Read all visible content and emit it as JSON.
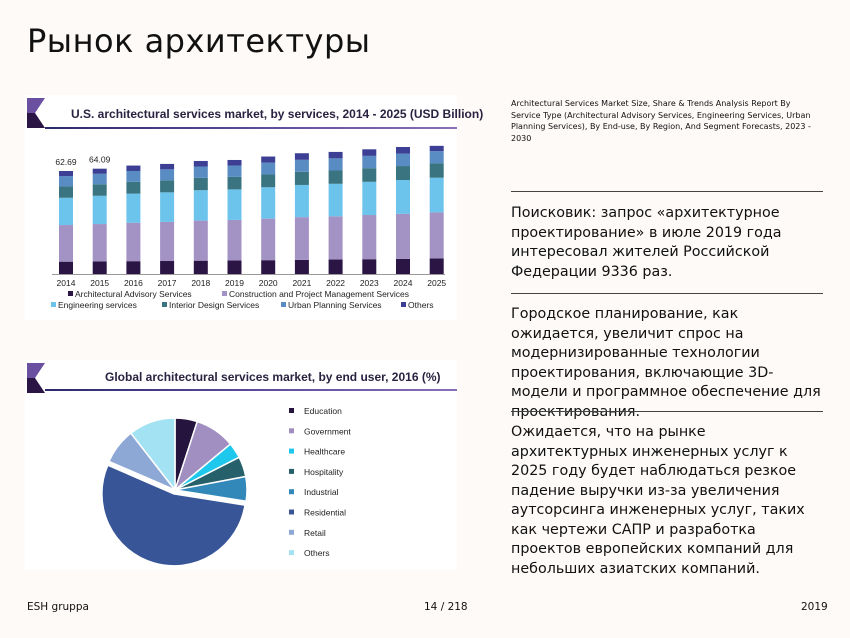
{
  "slide": {
    "title": "Рынок архитектуры",
    "report_title": "Architectural Services Market Size, Share & Trends Analysis Report By Service Type (Architectural Advisory Services, Engineering Services, Urban Planning Services), By End-use, By Region, And Segment Forecasts, 2023 - 2030",
    "paragraphs": [
      "Поисковик: запрос «архитектурное проектирование» в июле 2019 года интересовал жителей Российской Федерации 9336 раз.",
      "Городское планирование, как ожидается, увеличит спрос на модернизированные технологии проектирования, включающие 3D-модели и программное обеспечение для проектирования.",
      "Ожидается, что на рынке архитектурных инженерных услуг к 2025 году будет наблюдаться резкое падение выручки из-за увеличения аутсорсинга инженерных услуг, таких как чертежи САПР и разработка проектов европейских компаний для небольших азиатских компаний."
    ]
  },
  "footer": {
    "left": "ESH gruppa",
    "page": "14 / 218",
    "year": "2019"
  },
  "chart_data": [
    {
      "type": "bar",
      "stacked": true,
      "title": "U.S. architectural services market, by services, 2014 - 2025 (USD Billion)",
      "categories": [
        "2014",
        "2015",
        "2016",
        "2017",
        "2018",
        "2019",
        "2020",
        "2021",
        "2022",
        "2023",
        "2024",
        "2025"
      ],
      "data_labels": {
        "2014": "62.69",
        "2015": "64.09"
      },
      "legend_placement": "bottom",
      "grid": false,
      "series": [
        {
          "name": "Architectural Advisory Services",
          "color": "#2b1545",
          "values": [
            7.5,
            7.6,
            7.8,
            7.9,
            8.1,
            8.2,
            8.4,
            8.6,
            8.8,
            9.0,
            9.2,
            9.5
          ]
        },
        {
          "name": "Construction and Project Management Services",
          "color": "#a392c4",
          "values": [
            22.3,
            22.8,
            23.4,
            23.8,
            24.4,
            24.7,
            25.3,
            26.0,
            26.3,
            26.9,
            27.4,
            28.0
          ]
        },
        {
          "name": "Engineering services",
          "color": "#6cc4ec",
          "values": [
            16.6,
            17.2,
            17.7,
            18.0,
            18.5,
            18.6,
            19.1,
            19.6,
            19.8,
            20.2,
            20.6,
            21.1
          ]
        },
        {
          "name": "Interior Design Services",
          "color": "#3a7480",
          "values": [
            6.9,
            7.0,
            7.2,
            7.3,
            7.5,
            7.6,
            7.8,
            8.0,
            8.1,
            8.3,
            8.5,
            8.7
          ]
        },
        {
          "name": "Urban Planning Services",
          "color": "#5a8cc4",
          "values": [
            6.3,
            6.4,
            6.6,
            6.7,
            6.9,
            6.9,
            7.2,
            7.3,
            7.4,
            7.5,
            7.6,
            7.5
          ]
        },
        {
          "name": "Others",
          "color": "#3c3f94",
          "values": [
            3.1,
            3.1,
            3.3,
            3.3,
            3.4,
            3.4,
            3.7,
            4.0,
            3.9,
            4.0,
            4.0,
            3.2
          ]
        }
      ],
      "ylim": [
        0,
        80
      ]
    },
    {
      "type": "pie",
      "title": "Global architectural services market, by end user, 2016 (%)",
      "legend_placement": "right",
      "slices": [
        {
          "label": "Education",
          "value": 5,
          "color": "#24143e"
        },
        {
          "label": "Government",
          "value": 9,
          "color": "#a08fc0"
        },
        {
          "label": "Healthcare",
          "value": 3.5,
          "color": "#1ec8ec"
        },
        {
          "label": "Hospitality",
          "value": 4.5,
          "color": "#26606a"
        },
        {
          "label": "Industrial",
          "value": 5.5,
          "color": "#3288b8"
        },
        {
          "label": "Residential",
          "value": 54,
          "color": "#385597",
          "exploded": true
        },
        {
          "label": "Retail",
          "value": 8,
          "color": "#8ea8d6"
        },
        {
          "label": "Others",
          "value": 10.5,
          "color": "#a2e2f2"
        }
      ]
    }
  ]
}
